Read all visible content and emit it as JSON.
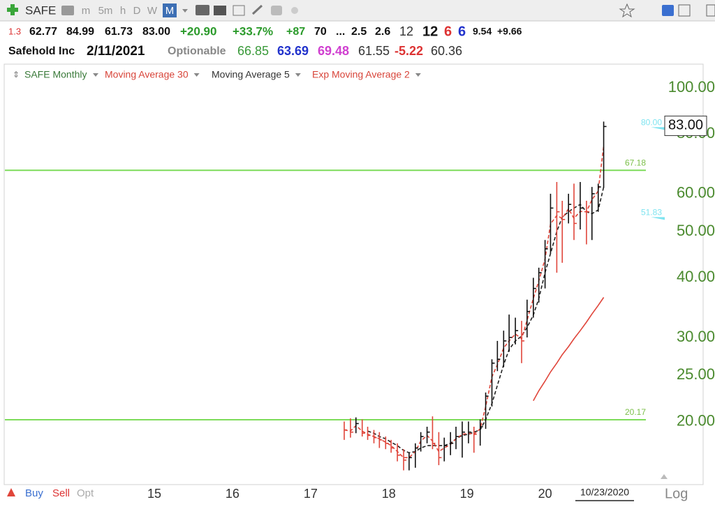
{
  "toolbar": {
    "symbol": "SAFE",
    "intervals": [
      "m",
      "5m",
      "h",
      "D",
      "W",
      "M"
    ],
    "active_interval": 5
  },
  "quote_row": [
    "1.3",
    "62.77",
    "84.99",
    "61.73",
    "83.00",
    "+20.90",
    "+33.7%",
    "+87",
    "70",
    "...",
    "2.5",
    "2.6",
    "12",
    "12",
    "6",
    "6",
    "9.54",
    "+9.66"
  ],
  "info_row": [
    "Safehold Inc",
    "2/11/2021",
    "Optionable",
    "66.85",
    "63.69",
    "69.48",
    "61.55",
    "-5.22",
    "60.36"
  ],
  "footer": {
    "buttons": [
      "Buy",
      "Sell",
      "Opt"
    ],
    "scale": "Log",
    "cursor_date": "10/23/2020"
  },
  "chart_data": {
    "type": "ohlc",
    "symbol_label": "SAFE Monthly",
    "log_scale": true,
    "xlim": [
      13.07,
      21.29
    ],
    "xticks": [
      15,
      16,
      17,
      18,
      19,
      20
    ],
    "ylim": [
      15,
      111
    ],
    "yticks": [
      {
        "value": 100,
        "label": "100.00"
      },
      {
        "value": 80,
        "label": "80.00"
      },
      {
        "value": 60,
        "label": "60.00"
      },
      {
        "value": 50,
        "label": "50.00"
      },
      {
        "value": 40,
        "label": "40.00"
      },
      {
        "value": 30,
        "label": "30.00"
      },
      {
        "value": 25,
        "label": "25.00"
      },
      {
        "value": 20,
        "label": "20.00"
      }
    ],
    "up_color": "#111111",
    "down_color": "#e0453a",
    "x": [
      17.43,
      17.51,
      17.58,
      17.66,
      17.73,
      17.81,
      17.88,
      17.96,
      18.03,
      18.11,
      18.19,
      18.26,
      18.34,
      18.41,
      18.49,
      18.56,
      18.64,
      18.71,
      18.79,
      18.86,
      18.94,
      19.02,
      19.09,
      19.17,
      19.24,
      19.32,
      19.39,
      19.47,
      19.54,
      19.62,
      19.7,
      19.77,
      19.85,
      19.92,
      20.0,
      20.07,
      20.15,
      20.22,
      20.3,
      20.37,
      20.45,
      20.53,
      20.6,
      20.68,
      20.75
    ],
    "high": [
      20,
      20.3,
      20.4,
      20.2,
      19.5,
      19.2,
      19,
      18.6,
      18.3,
      18,
      17.5,
      17.2,
      18,
      19,
      19.5,
      20.5,
      19,
      18.5,
      19,
      19.5,
      20,
      20,
      19.5,
      20.2,
      23,
      27,
      29.5,
      31,
      33.5,
      33,
      32.5,
      36,
      40,
      42,
      48,
      60,
      63.5,
      58,
      60,
      63,
      63.5,
      58,
      62,
      63,
      84.99
    ],
    "low": [
      18.3,
      18.5,
      18.9,
      18.6,
      18.3,
      18,
      17.6,
      17.5,
      17.2,
      16.5,
      15.8,
      15.8,
      16,
      17.3,
      18,
      17.5,
      16.2,
      16.5,
      17,
      17.5,
      16.8,
      18,
      17.2,
      17.8,
      19.3,
      21.5,
      25.5,
      26,
      28,
      29,
      26.5,
      30,
      33,
      35.5,
      38,
      45,
      41,
      43,
      52,
      48,
      50.5,
      47,
      48,
      55,
      61.73
    ],
    "close": [
      19.2,
      19,
      19.8,
      18.9,
      18.7,
      18.5,
      18.3,
      18,
      17.6,
      17,
      16.6,
      16.8,
      17.6,
      18.6,
      19,
      18,
      16.8,
      17.8,
      18,
      18.6,
      19,
      19,
      18.8,
      19.5,
      22.6,
      26.5,
      27,
      29.5,
      30,
      31,
      29.5,
      34,
      38,
      41,
      46,
      56,
      55,
      53,
      57,
      52,
      56,
      55,
      60,
      62,
      83
    ],
    "series": [
      {
        "name": "Moving Average 30",
        "color": "#e0453a",
        "dash": false,
        "values": [
          null,
          null,
          null,
          null,
          null,
          null,
          null,
          null,
          null,
          null,
          null,
          null,
          null,
          null,
          null,
          null,
          null,
          null,
          null,
          null,
          null,
          null,
          null,
          null,
          null,
          null,
          null,
          null,
          null,
          null,
          null,
          null,
          22.1,
          23.2,
          24.3,
          25.4,
          26.5,
          27.6,
          28.7,
          29.8,
          31,
          32.3,
          33.6,
          35,
          36.4
        ]
      },
      {
        "name": "Moving Average 5",
        "color": "#222222",
        "dash": true,
        "values": [
          null,
          null,
          null,
          null,
          19.1,
          18.9,
          18.6,
          18.4,
          18.1,
          17.8,
          17.4,
          17.2,
          17.3,
          17.6,
          17.8,
          17.8,
          17.8,
          17.8,
          18,
          18.4,
          18.7,
          18.8,
          19,
          19.2,
          20.2,
          21.8,
          23.8,
          26.3,
          28.3,
          29.5,
          30.2,
          31.5,
          33.4,
          36.2,
          41,
          45,
          50,
          53.6,
          55,
          56,
          57,
          55,
          54.5,
          55.5,
          62
        ]
      },
      {
        "name": "Exp Moving Average 2",
        "color": "#e0453a",
        "dash": true,
        "values": [
          19.2,
          19.1,
          19.6,
          19.1,
          18.8,
          18.6,
          18.4,
          18.1,
          17.8,
          17.3,
          16.8,
          16.8,
          17.3,
          18.2,
          18.7,
          18.2,
          17.3,
          17.6,
          17.9,
          18.4,
          18.8,
          18.9,
          18.8,
          19.3,
          21.5,
          24.8,
          26.3,
          28.5,
          29.5,
          30.5,
          29.8,
          32.6,
          36.2,
          39.4,
          43.8,
          51.9,
          54,
          53.3,
          55.8,
          53.3,
          55.1,
          55,
          58.3,
          60.8,
          75.6
        ]
      }
    ],
    "price_lines": [
      {
        "value": 67.18,
        "color": "#7ddc5a"
      },
      {
        "value": 20.17,
        "color": "#7ddc5a"
      }
    ],
    "side_markers": [
      {
        "value": 80,
        "label": "80.00",
        "color": "#7fe4f0"
      },
      {
        "value": 51.83,
        "color": "#7fe4f0"
      }
    ],
    "last_price": {
      "value": 83,
      "label": "83.00"
    }
  }
}
